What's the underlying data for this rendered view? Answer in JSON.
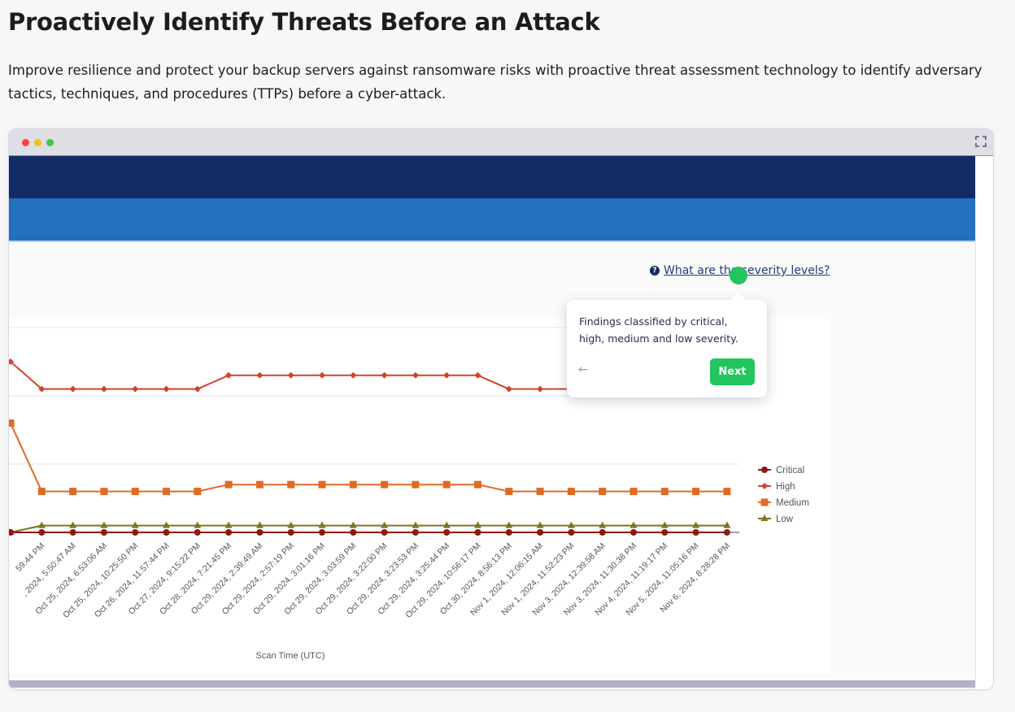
{
  "page": {
    "title": "Proactively Identify Threats Before an Attack",
    "description": "Improve resilience and protect your backup servers against ransomware risks with proactive threat assessment technology to identify adversary tactics, techniques, and procedures (TTPs) before a cyber-attack."
  },
  "window": {
    "controls": [
      "close",
      "minimize",
      "maximize"
    ],
    "control_colors": [
      "#f4483b",
      "#f2c21b",
      "#3fc83f"
    ],
    "expand_icon": "expand-icon",
    "nav_colors": [
      "#142a66",
      "#2370bd"
    ]
  },
  "help_link": {
    "icon": "question-circle-icon",
    "label": "What are the severity levels?"
  },
  "tour": {
    "text": "Findings classified by critical, high, medium and low severity.",
    "back_icon": "arrow-left-icon",
    "next_label": "Next",
    "accent": "#22c55e"
  },
  "chart_data": {
    "type": "line",
    "xlabel": "Scan Time (UTC)",
    "ylabel": "",
    "ylim": [
      0,
      30
    ],
    "grid": true,
    "legend": "right",
    "categories": [
      "",
      "59:44 PM",
      ", 2024, 5:50:47 AM",
      "Oct 25, 2024, 6:53:06 AM",
      "Oct 25, 2024, 10:25:50 PM",
      "Oct 26, 2024, 11:57:44 PM",
      "Oct 27, 2024, 9:15:22 PM",
      "Oct 28, 2024, 7:21:45 PM",
      "Oct 29, 2024, 2:39:49 AM",
      "Oct 29, 2024, 2:57:19 PM",
      "Oct 29, 2024, 3:01:16 PM",
      "Oct 29, 2024, 3:03:59 PM",
      "Oct 29, 2024, 3:22:00 PM",
      "Oct 29, 2024, 3:23:53 PM",
      "Oct 29, 2024, 3:25:44 PM",
      "Oct 29, 2024, 10:56:17 PM",
      "Oct 30, 2024, 8:56:13 PM",
      "Nov 1, 2024, 12:06:15 AM",
      "Nov 1, 2024, 11:52:23 PM",
      "Nov 3, 2024, 12:39:58 AM",
      "Nov 3, 2024, 11:30:38 PM",
      "Nov 4, 2024, 11:19:17 PM",
      "Nov 5, 2024, 11:05:16 PM",
      "Nov 6, 2024, 8:28:28 PM"
    ],
    "series": [
      {
        "name": "Critical",
        "color": "#8b1a10",
        "marker": "circle",
        "values": [
          0,
          0,
          0,
          0,
          0,
          0,
          0,
          0,
          0,
          0,
          0,
          0,
          0,
          0,
          0,
          0,
          0,
          0,
          0,
          0,
          0,
          0,
          0,
          0
        ]
      },
      {
        "name": "High",
        "color": "#d0442a",
        "marker": "diamond",
        "values": [
          25,
          21,
          21,
          21,
          21,
          21,
          21,
          23,
          23,
          23,
          23,
          23,
          23,
          23,
          23,
          23,
          21,
          21,
          21,
          21,
          21,
          21,
          21,
          21
        ]
      },
      {
        "name": "Medium",
        "color": "#e06a25",
        "marker": "square",
        "values": [
          16,
          6,
          6,
          6,
          6,
          6,
          6,
          7,
          7,
          7,
          7,
          7,
          7,
          7,
          7,
          7,
          6,
          6,
          6,
          6,
          6,
          6,
          6,
          6
        ]
      },
      {
        "name": "Low",
        "color": "#7d7424",
        "marker": "triangle",
        "values": [
          0,
          1,
          1,
          1,
          1,
          1,
          1,
          1,
          1,
          1,
          1,
          1,
          1,
          1,
          1,
          1,
          1,
          1,
          1,
          1,
          1,
          1,
          1,
          1
        ]
      }
    ]
  }
}
